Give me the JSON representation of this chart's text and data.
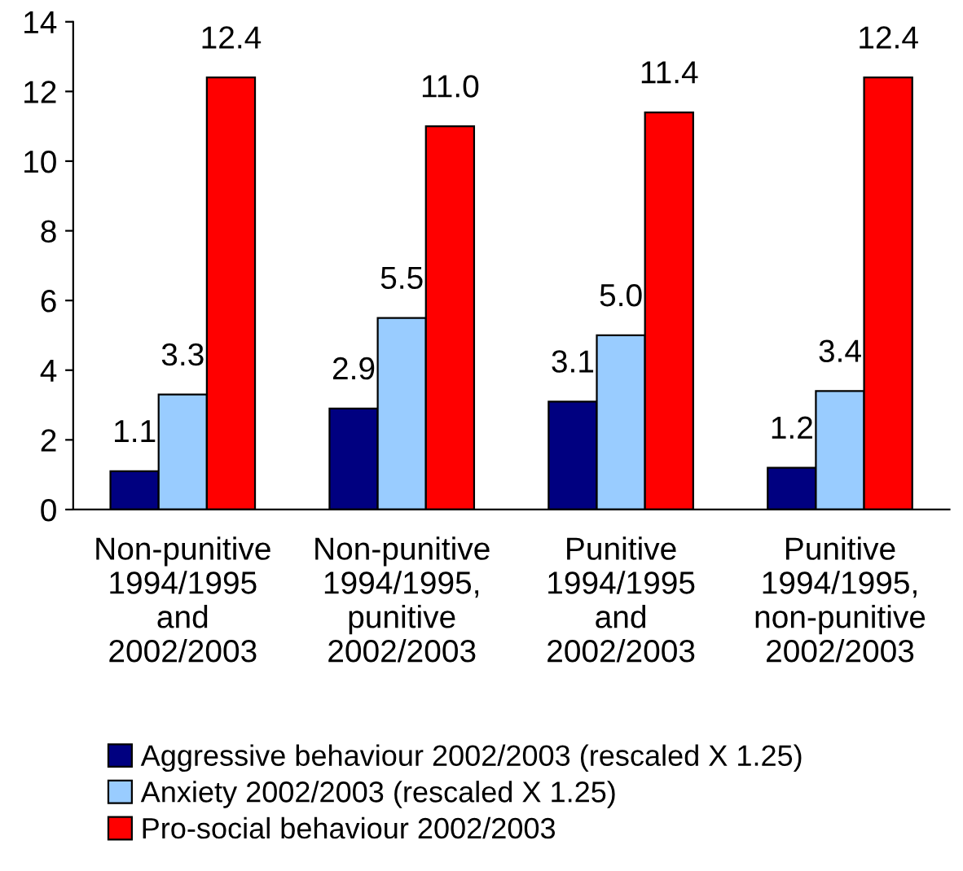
{
  "chart_data": {
    "type": "bar",
    "categories": [
      "Non-punitive\n1994/1995\nand\n2002/2003",
      "Non-punitive\n1994/1995,\npunitive\n2002/2003",
      "Punitive\n1994/1995\nand\n2002/2003",
      "Punitive\n1994/1995,\nnon-punitive\n2002/2003"
    ],
    "series": [
      {
        "name": "Aggressive behaviour 2002/2003 (rescaled X 1.25)",
        "color": "#000080",
        "values": [
          1.1,
          2.9,
          3.1,
          1.2
        ],
        "value_labels": [
          "1.1",
          "2.9",
          "3.1",
          "1.2"
        ]
      },
      {
        "name": "Anxiety 2002/2003 (rescaled X 1.25)",
        "color": "#99ccff",
        "values": [
          3.3,
          5.5,
          5.0,
          3.4
        ],
        "value_labels": [
          "3.3",
          "5.5",
          "5.0",
          "3.4"
        ]
      },
      {
        "name": "Pro-social behaviour 2002/2003",
        "color": "#ff0000",
        "values": [
          12.4,
          11.0,
          11.4,
          12.4
        ],
        "value_labels": [
          "12.4",
          "11.0",
          "11.4",
          "12.4"
        ]
      }
    ],
    "ylim": [
      0,
      14
    ],
    "yticks": [
      0,
      2,
      4,
      6,
      8,
      10,
      12,
      14
    ],
    "grid": false,
    "legend": "bottom"
  }
}
